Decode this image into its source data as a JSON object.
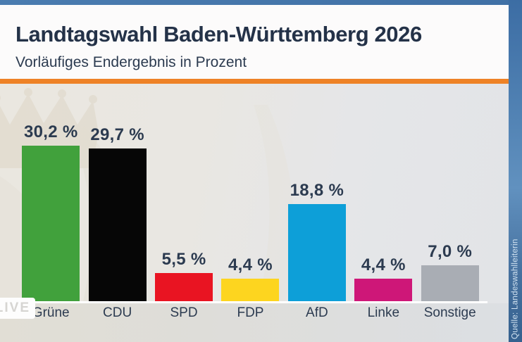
{
  "header": {
    "title": "Landtagswahl Baden-Württemberg 2026",
    "subtitle": "Vorläufiges Endergebnis in Prozent"
  },
  "live_badge": {
    "label": "LIVE"
  },
  "source": {
    "label": "Quelle: Landeswahlleiterin"
  },
  "chart_data": {
    "type": "bar",
    "title": "Landtagswahl Baden-Württemberg 2026",
    "subtitle": "Vorläufiges Endergebnis in Prozent",
    "unit": "percent",
    "categories": [
      "Grüne",
      "CDU",
      "SPD",
      "FDP",
      "AfD",
      "Linke",
      "Sonstige"
    ],
    "values": [
      30.2,
      29.7,
      5.5,
      4.4,
      18.8,
      4.4,
      7.0
    ],
    "value_labels": [
      "30,2 %",
      "29,7 %",
      "5,5 %",
      "4,4 %",
      "18,8 %",
      "4,4 %",
      "7,0 %"
    ],
    "bar_colors": [
      "#41a13c",
      "#060606",
      "#e91422",
      "#fdd51f",
      "#0d9fd8",
      "#ce1778",
      "#a9adb4"
    ],
    "ylim": [
      0,
      33
    ],
    "grid": false,
    "legend": "none",
    "baseline_color": "#ffffff"
  },
  "colors": {
    "accent_orange": "#ee8226",
    "header_background": "#fcfbfb",
    "chart_background": "#e8e6e2",
    "video_blue": "#3f6fa4",
    "text_dark": "#243248"
  }
}
